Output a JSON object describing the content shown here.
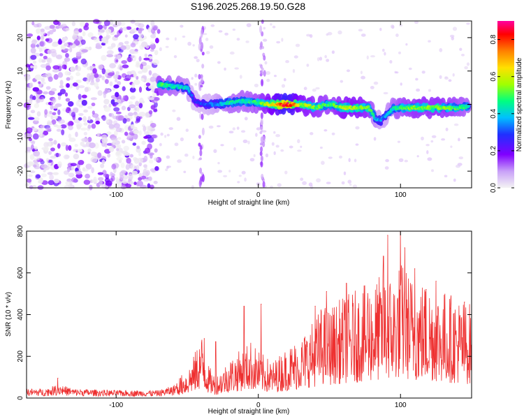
{
  "title": "S196.2025.268.19.50.G28",
  "chart_data": [
    {
      "type": "heatmap",
      "title": "S196.2025.268.19.50.G28",
      "xlabel": "Height of straight line (km)",
      "ylabel": "Frequency (Hz)",
      "xlim": [
        -163,
        150
      ],
      "ylim": [
        -25,
        25
      ],
      "xticks": [
        -100,
        0,
        100
      ],
      "yticks": [
        -20,
        -10,
        0,
        10,
        20
      ],
      "xtick_labels": [
        "-100",
        "0",
        "100"
      ],
      "ytick_labels": [
        "-20",
        "-10",
        "0",
        "10",
        "20"
      ],
      "colorbar": {
        "label": "Normalized spectral amplitude",
        "range": [
          0.0,
          0.9
        ],
        "ticks": [
          0.0,
          0.2,
          0.4,
          0.6,
          0.8
        ],
        "tick_labels": [
          "0.0",
          "0.2",
          "0.4",
          "0.6",
          "0.8"
        ],
        "colormap": [
          "#f0f0f0",
          "#d8b8f8",
          "#8000ff",
          "#2030ff",
          "#00c0ff",
          "#00ff80",
          "#a0ff00",
          "#ffe000",
          "#ff8000",
          "#ff0000",
          "#ff00a0"
        ]
      },
      "ridge": {
        "x": [
          -70,
          -60,
          -50,
          -45,
          -40,
          -30,
          -20,
          -10,
          0,
          10,
          20,
          30,
          40,
          50,
          60,
          70,
          78,
          82,
          86,
          90,
          95,
          100,
          110,
          120,
          130,
          140,
          148
        ],
        "freq": [
          6,
          5.5,
          5,
          1,
          0,
          0,
          0.5,
          1,
          0.5,
          0,
          0,
          0,
          -1,
          0,
          -1,
          -1,
          -1,
          -4,
          -5,
          -3,
          -1,
          -1,
          -1,
          -1,
          -1,
          -1,
          -0.5
        ],
        "peak_amplitude": [
          0.5,
          0.45,
          0.4,
          0.25,
          0.3,
          0.35,
          0.45,
          0.45,
          0.5,
          0.65,
          0.9,
          0.6,
          0.55,
          0.5,
          0.6,
          0.6,
          0.55,
          0.4,
          0.35,
          0.35,
          0.45,
          0.5,
          0.55,
          0.55,
          0.55,
          0.5,
          0.45
        ]
      },
      "noise_region_x": [
        -163,
        -70
      ]
    },
    {
      "type": "line",
      "xlabel": "Height of straight line (km)",
      "ylabel": "SNR (10 * v/v)",
      "xlim": [
        -163,
        150
      ],
      "ylim": [
        0,
        800
      ],
      "xticks": [
        -100,
        0,
        100
      ],
      "yticks": [
        0,
        200,
        400,
        600,
        800
      ],
      "xtick_labels": [
        "-100",
        "0",
        "100"
      ],
      "ytick_labels": [
        "0",
        "200",
        "400",
        "600",
        "800"
      ],
      "series": [
        {
          "name": "SNR",
          "color": "#ee3030",
          "envelope_x": [
            -163,
            -150,
            -140,
            -130,
            -100,
            -70,
            -60,
            -55,
            -50,
            -45,
            -40,
            -35,
            -30,
            -20,
            -10,
            -5,
            0,
            10,
            20,
            30,
            40,
            45,
            50,
            60,
            70,
            80,
            90,
            95,
            100,
            110,
            120,
            130,
            140,
            150
          ],
          "envelope_mean": [
            30,
            30,
            45,
            30,
            25,
            25,
            40,
            60,
            80,
            120,
            180,
            90,
            60,
            110,
            140,
            160,
            130,
            100,
            140,
            170,
            220,
            260,
            250,
            280,
            300,
            320,
            350,
            340,
            380,
            330,
            320,
            300,
            280,
            260
          ],
          "peaks": [
            {
              "x": -141,
              "y": 95
            },
            {
              "x": -38,
              "y": 285
            },
            {
              "x": -30,
              "y": 270
            },
            {
              "x": -10,
              "y": 440
            },
            {
              "x": 2,
              "y": 450
            },
            {
              "x": 40,
              "y": 440
            },
            {
              "x": 48,
              "y": 510
            },
            {
              "x": 62,
              "y": 550
            },
            {
              "x": 77,
              "y": 500
            },
            {
              "x": 88,
              "y": 680
            },
            {
              "x": 91,
              "y": 780
            },
            {
              "x": 100,
              "y": 800
            },
            {
              "x": 103,
              "y": 720
            },
            {
              "x": 110,
              "y": 620
            },
            {
              "x": 118,
              "y": 520
            },
            {
              "x": 125,
              "y": 560
            },
            {
              "x": 135,
              "y": 430
            },
            {
              "x": 145,
              "y": 460
            }
          ]
        }
      ]
    }
  ]
}
